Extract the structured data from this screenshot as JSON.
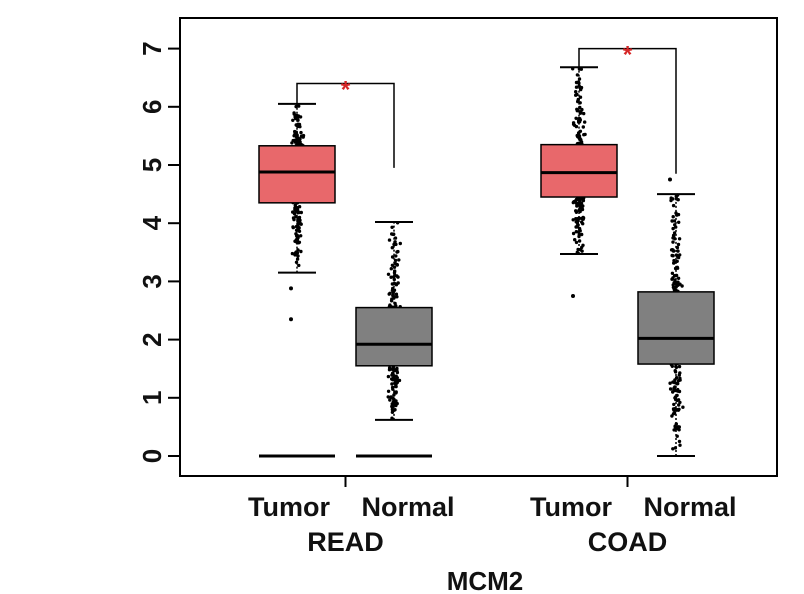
{
  "chart_data": {
    "type": "box",
    "title": "",
    "xlabel": "MCM2",
    "ylabel": "",
    "ylim": [
      0,
      7
    ],
    "yticks": [
      0,
      1,
      2,
      3,
      4,
      5,
      6,
      7
    ],
    "groups": [
      {
        "name": "READ",
        "categories": [
          {
            "label": "Tumor",
            "min": 3.15,
            "q1": 4.35,
            "median": 4.88,
            "q3": 5.33,
            "max": 6.05,
            "color": "#e8686b",
            "outliers": [
              2.35,
              2.88
            ],
            "zero_line": true
          },
          {
            "label": "Normal",
            "min": 0.62,
            "q1": 1.55,
            "median": 1.92,
            "q3": 2.55,
            "max": 4.02,
            "color": "#808080",
            "outliers": [],
            "zero_line": true
          }
        ],
        "significance": "*"
      },
      {
        "name": "COAD",
        "categories": [
          {
            "label": "Tumor",
            "min": 3.47,
            "q1": 4.45,
            "median": 4.87,
            "q3": 5.35,
            "max": 6.68,
            "color": "#e8686b",
            "outliers": [
              2.75
            ],
            "zero_line": false
          },
          {
            "label": "Normal",
            "min": 0.0,
            "q1": 1.58,
            "median": 2.02,
            "q3": 2.82,
            "max": 4.5,
            "color": "#808080",
            "outliers": [
              4.75
            ],
            "zero_line": false
          }
        ],
        "significance": "*"
      }
    ],
    "grid": false,
    "legend": "none",
    "colors": {
      "tumor": "#e8686b",
      "normal": "#808080",
      "significance": "#d62728"
    }
  }
}
